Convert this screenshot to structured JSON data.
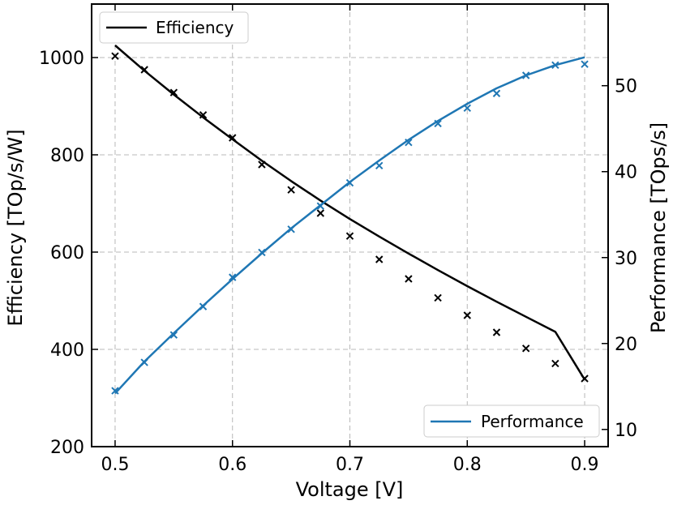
{
  "chart_data": {
    "type": "line",
    "xlabel": "Voltage [V]",
    "ylabel_left": "Efficiency [TOp/s/W]",
    "ylabel_right": "Performance [TOps/s]",
    "xlim": [
      0.48,
      0.92
    ],
    "ylim_left": [
      200,
      1110
    ],
    "ylim_right": [
      8,
      59.5
    ],
    "xticks": [
      0.5,
      0.6,
      0.7,
      0.8,
      0.9
    ],
    "xtick_labels": [
      "0.5",
      "0.6",
      "0.7",
      "0.8",
      "0.9"
    ],
    "yticks_left": [
      200,
      400,
      600,
      800,
      1000
    ],
    "ytick_labels_left": [
      "200",
      "400",
      "600",
      "800",
      "1000"
    ],
    "yticks_right": [
      10,
      20,
      30,
      40,
      50
    ],
    "ytick_labels_right": [
      "10",
      "20",
      "30",
      "40",
      "50"
    ],
    "grid": true,
    "x": [
      0.5,
      0.525,
      0.55,
      0.575,
      0.6,
      0.625,
      0.65,
      0.675,
      0.7,
      0.725,
      0.75,
      0.775,
      0.8,
      0.825,
      0.85,
      0.875,
      0.9
    ],
    "series": [
      {
        "name": "Efficiency",
        "axis": "left",
        "color": "#000000",
        "legend": "top-left",
        "fit": [
          1025,
          973,
          924,
          877,
          832,
          788,
          746,
          706,
          668,
          632,
          597,
          563,
          530,
          498,
          467,
          436,
          338
        ],
        "measured": [
          1003,
          975,
          928,
          882,
          835,
          780,
          728,
          680,
          633,
          585,
          545,
          506,
          470,
          435,
          402,
          371,
          340
        ]
      },
      {
        "name": "Performance",
        "axis": "right",
        "color": "#1f77b4",
        "legend": "bottom-right",
        "fit": [
          14.2,
          17.9,
          21.2,
          24.4,
          27.5,
          30.5,
          33.4,
          36.1,
          38.8,
          41.3,
          43.7,
          45.9,
          47.9,
          49.7,
          51.2,
          52.4,
          53.3
        ],
        "measured": [
          14.5,
          17.8,
          21.0,
          24.3,
          27.7,
          30.6,
          33.3,
          36.0,
          38.7,
          40.7,
          43.4,
          45.6,
          47.4,
          49.1,
          51.2,
          52.4,
          52.5
        ]
      }
    ]
  }
}
